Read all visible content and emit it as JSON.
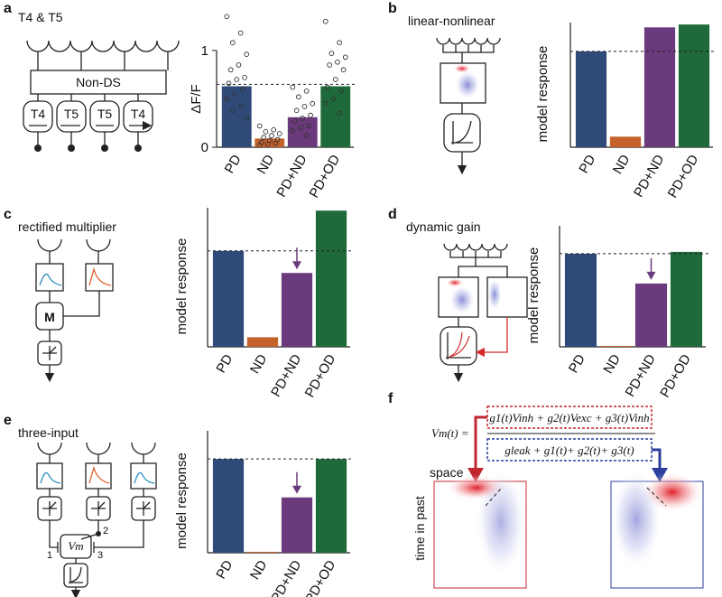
{
  "panels": [
    {
      "label": "a",
      "title": "T4 & T5"
    },
    {
      "label": "b",
      "title": "linear-nonlinear"
    },
    {
      "label": "c",
      "title": "rectified multiplier"
    },
    {
      "label": "d",
      "title": "dynamic gain"
    },
    {
      "label": "e",
      "title": "three-input"
    },
    {
      "label": "f"
    }
  ],
  "diagrams": {
    "a": {
      "box": "Non-DS",
      "cells": [
        "T4",
        "T5",
        "T5",
        "T4"
      ]
    },
    "c": {
      "box": "M"
    },
    "e": {
      "box": "Vm",
      "inputs": [
        "1",
        "2",
        "3"
      ]
    }
  },
  "equation": {
    "lhs": "Vm(t) =",
    "numerator": "g1(t)Vinh + g2(t)Vexc + g3(t)Vinh",
    "denominator": "gleak + g1(t)+ g2(t)+ g3(t)"
  },
  "field_labels": {
    "x": "space",
    "y": "time in past"
  },
  "chart_data": [
    {
      "type": "bar",
      "categories": [
        "PD",
        "ND",
        "PD+ND",
        "PD+OD"
      ],
      "values": [
        0.63,
        0.09,
        0.31,
        0.63
      ],
      "colors": [
        "#2f4a78",
        "#c5612b",
        "#6b3a7c",
        "#1f6a3a"
      ],
      "ylabel": "ΔF/F",
      "ylim": [
        0,
        1.4
      ],
      "yticks": [
        0,
        1
      ],
      "reference_line": 0.65,
      "points": [
        [
          1.35,
          1.18,
          1.08,
          0.96,
          0.85,
          0.8,
          0.72,
          0.7,
          0.66,
          0.6,
          0.55,
          0.5,
          0.42,
          0.38,
          0.3
        ],
        [
          0.22,
          0.18,
          0.16,
          0.14,
          0.12,
          0.1,
          0.08,
          0.07,
          0.05,
          0.04,
          0.03,
          0.02
        ],
        [
          0.62,
          0.58,
          0.52,
          0.45,
          0.42,
          0.38,
          0.33,
          0.3,
          0.27,
          0.22,
          0.2,
          0.17,
          0.12
        ],
        [
          1.3,
          1.08,
          0.97,
          0.93,
          0.88,
          0.85,
          0.8,
          0.7,
          0.62,
          0.58,
          0.5,
          0.45,
          0.35
        ]
      ]
    },
    {
      "type": "bar",
      "categories": [
        "PD",
        "ND",
        "PD+ND",
        "PD+OD"
      ],
      "values": [
        1.0,
        0.11,
        1.25,
        1.28
      ],
      "colors": [
        "#2f4a78",
        "#c5612b",
        "#6b3a7c",
        "#1f6a3a"
      ],
      "ylabel": "model response",
      "ylim": [
        0,
        1.3
      ],
      "reference_line": 1.0
    },
    {
      "type": "bar",
      "categories": [
        "PD",
        "ND",
        "PD+ND",
        "PD+OD"
      ],
      "values": [
        1.0,
        0.1,
        0.77,
        1.42
      ],
      "colors": [
        "#2f4a78",
        "#c5612b",
        "#6b3a7c",
        "#1f6a3a"
      ],
      "ylabel": "model response",
      "ylim": [
        0,
        1.45
      ],
      "reference_line": 1.0,
      "arrow": true
    },
    {
      "type": "bar",
      "categories": [
        "PD",
        "ND",
        "PD+ND",
        "PD+OD"
      ],
      "values": [
        1.0,
        0.01,
        0.68,
        1.02
      ],
      "colors": [
        "#2f4a78",
        "#c5612b",
        "#6b3a7c",
        "#1f6a3a"
      ],
      "ylabel": "model response",
      "ylim": [
        0,
        1.3
      ],
      "reference_line": 1.0,
      "arrow": true
    },
    {
      "type": "bar",
      "categories": [
        "PD",
        "ND",
        "PD+ND",
        "PD+OD"
      ],
      "values": [
        1.0,
        0.01,
        0.59,
        1.0
      ],
      "colors": [
        "#2f4a78",
        "#c5612b",
        "#6b3a7c",
        "#1f6a3a"
      ],
      "ylabel": "model response",
      "ylim": [
        0,
        1.3
      ],
      "reference_line": 1.0,
      "arrow": true
    }
  ]
}
